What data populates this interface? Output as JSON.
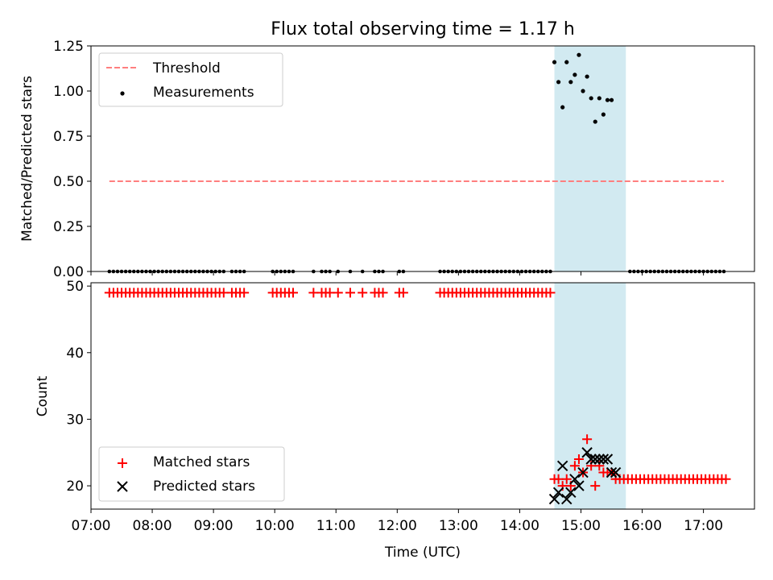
{
  "figure": {
    "title": "Flux total observing time = 1.17 h"
  },
  "colors": {
    "threshold": "#ff7f7f",
    "measurement": "#000000",
    "matched": "#ff0000",
    "predicted": "#000000",
    "span_fill": "#add8e6"
  },
  "chart_data": [
    {
      "type": "scatter",
      "title": "Flux total observing time = 1.17 h",
      "ylabel": "Matched/Predicted stars",
      "xlabel": "",
      "xlim": [
        "07:00",
        "17:50"
      ],
      "ylim": [
        0,
        1.25
      ],
      "x_ticks": [
        "07:00",
        "08:00",
        "09:00",
        "10:00",
        "11:00",
        "12:00",
        "13:00",
        "14:00",
        "15:00",
        "16:00",
        "17:00"
      ],
      "y_ticks": [
        "0.00",
        "0.25",
        "0.50",
        "0.75",
        "1.00",
        "1.25"
      ],
      "highlight_span": [
        "14:34",
        "15:44"
      ],
      "legend": {
        "placement": "upper left",
        "entries": [
          "Threshold",
          "Measurements"
        ]
      },
      "threshold": {
        "name": "Threshold",
        "value": 0.5,
        "x_range": [
          "07:18",
          "17:20"
        ],
        "style": "dashed"
      },
      "series": [
        {
          "name": "Measurements",
          "zero_times": [
            "07:18",
            "07:22",
            "07:26",
            "07:30",
            "07:34",
            "07:38",
            "07:42",
            "07:46",
            "07:50",
            "07:54",
            "07:58",
            "08:02",
            "08:06",
            "08:10",
            "08:14",
            "08:18",
            "08:22",
            "08:26",
            "08:30",
            "08:34",
            "08:38",
            "08:42",
            "08:46",
            "08:50",
            "08:54",
            "08:58",
            "09:02",
            "09:06",
            "09:10",
            "09:18",
            "09:22",
            "09:26",
            "09:30",
            "09:58",
            "10:02",
            "10:06",
            "10:10",
            "10:14",
            "10:18",
            "10:38",
            "10:46",
            "10:50",
            "10:54",
            "11:02",
            "11:14",
            "11:26",
            "11:38",
            "11:42",
            "11:46",
            "12:02",
            "12:06",
            "12:42",
            "12:46",
            "12:50",
            "12:54",
            "12:58",
            "13:02",
            "13:06",
            "13:10",
            "13:14",
            "13:18",
            "13:22",
            "13:26",
            "13:30",
            "13:34",
            "13:38",
            "13:42",
            "13:46",
            "13:50",
            "13:54",
            "13:58",
            "14:02",
            "14:06",
            "14:10",
            "14:14",
            "14:18",
            "14:22",
            "14:26",
            "14:30",
            "15:48",
            "15:52",
            "15:56",
            "16:00",
            "16:04",
            "16:08",
            "16:12",
            "16:16",
            "16:20",
            "16:24",
            "16:28",
            "16:32",
            "16:36",
            "16:40",
            "16:44",
            "16:48",
            "16:52",
            "16:56",
            "17:00",
            "17:04",
            "17:08",
            "17:12",
            "17:16",
            "17:20"
          ],
          "points": [
            [
              "14:34",
              1.16
            ],
            [
              "14:38",
              1.05
            ],
            [
              "14:42",
              0.91
            ],
            [
              "14:46",
              1.16
            ],
            [
              "14:50",
              1.05
            ],
            [
              "14:54",
              1.09
            ],
            [
              "14:58",
              1.2
            ],
            [
              "15:02",
              1.0
            ],
            [
              "15:06",
              1.08
            ],
            [
              "15:10",
              0.96
            ],
            [
              "15:14",
              0.83
            ],
            [
              "15:18",
              0.96
            ],
            [
              "15:22",
              0.87
            ],
            [
              "15:26",
              0.95
            ],
            [
              "15:30",
              0.95
            ]
          ]
        }
      ]
    },
    {
      "type": "scatter",
      "ylabel": "Count",
      "xlabel": "Time (UTC)",
      "xlim": [
        "07:00",
        "17:50"
      ],
      "ylim": [
        16.5,
        50.5
      ],
      "x_ticks": [
        "07:00",
        "08:00",
        "09:00",
        "10:00",
        "11:00",
        "12:00",
        "13:00",
        "14:00",
        "15:00",
        "16:00",
        "17:00"
      ],
      "y_ticks": [
        "20",
        "30",
        "40",
        "50"
      ],
      "highlight_span": [
        "14:34",
        "15:44"
      ],
      "legend": {
        "placement": "lower left",
        "entries": [
          "Matched stars",
          "Predicted stars"
        ]
      },
      "series": [
        {
          "name": "Matched stars",
          "marker": "plus",
          "constant_value": 49,
          "constant_times": [
            "07:18",
            "07:22",
            "07:26",
            "07:30",
            "07:34",
            "07:38",
            "07:42",
            "07:46",
            "07:50",
            "07:54",
            "07:58",
            "08:02",
            "08:06",
            "08:10",
            "08:14",
            "08:18",
            "08:22",
            "08:26",
            "08:30",
            "08:34",
            "08:38",
            "08:42",
            "08:46",
            "08:50",
            "08:54",
            "08:58",
            "09:02",
            "09:06",
            "09:10",
            "09:18",
            "09:22",
            "09:26",
            "09:30",
            "09:58",
            "10:02",
            "10:06",
            "10:10",
            "10:14",
            "10:18",
            "10:38",
            "10:46",
            "10:50",
            "10:54",
            "11:02",
            "11:14",
            "11:26",
            "11:38",
            "11:42",
            "11:46",
            "12:02",
            "12:06",
            "12:42",
            "12:46",
            "12:50",
            "12:54",
            "12:58",
            "13:02",
            "13:06",
            "13:10",
            "13:14",
            "13:18",
            "13:22",
            "13:26",
            "13:30",
            "13:34",
            "13:38",
            "13:42",
            "13:46",
            "13:50",
            "13:54",
            "13:58",
            "14:02",
            "14:06",
            "14:10",
            "14:14",
            "14:18",
            "14:22",
            "14:26",
            "14:30"
          ],
          "points": [
            [
              "14:34",
              21
            ],
            [
              "14:38",
              21
            ],
            [
              "14:42",
              20
            ],
            [
              "14:46",
              21
            ],
            [
              "14:50",
              20
            ],
            [
              "14:54",
              23
            ],
            [
              "14:58",
              24
            ],
            [
              "15:02",
              22
            ],
            [
              "15:06",
              27
            ],
            [
              "15:10",
              23
            ],
            [
              "15:14",
              20
            ],
            [
              "15:18",
              23
            ],
            [
              "15:22",
              22
            ],
            [
              "15:26",
              22
            ],
            [
              "15:30",
              22
            ],
            [
              "15:34",
              21
            ],
            [
              "15:38",
              21
            ],
            [
              "15:42",
              21
            ],
            [
              "15:46",
              21
            ],
            [
              "15:50",
              21
            ]
          ],
          "tail_value": 21,
          "tail_times": [
            "15:54",
            "15:58",
            "16:02",
            "16:06",
            "16:10",
            "16:14",
            "16:18",
            "16:22",
            "16:26",
            "16:30",
            "16:34",
            "16:38",
            "16:42",
            "16:46",
            "16:50",
            "16:54",
            "16:58",
            "17:02",
            "17:06",
            "17:10",
            "17:14",
            "17:18",
            "17:22"
          ]
        },
        {
          "name": "Predicted stars",
          "marker": "x",
          "points": [
            [
              "14:34",
              18
            ],
            [
              "14:38",
              19
            ],
            [
              "14:42",
              23
            ],
            [
              "14:46",
              18
            ],
            [
              "14:50",
              19
            ],
            [
              "14:54",
              21
            ],
            [
              "14:58",
              20
            ],
            [
              "15:02",
              22
            ],
            [
              "15:06",
              25
            ],
            [
              "15:10",
              24
            ],
            [
              "15:14",
              24
            ],
            [
              "15:18",
              24
            ],
            [
              "15:22",
              24
            ],
            [
              "15:26",
              24
            ],
            [
              "15:30",
              22
            ],
            [
              "15:34",
              22
            ]
          ]
        }
      ]
    }
  ]
}
